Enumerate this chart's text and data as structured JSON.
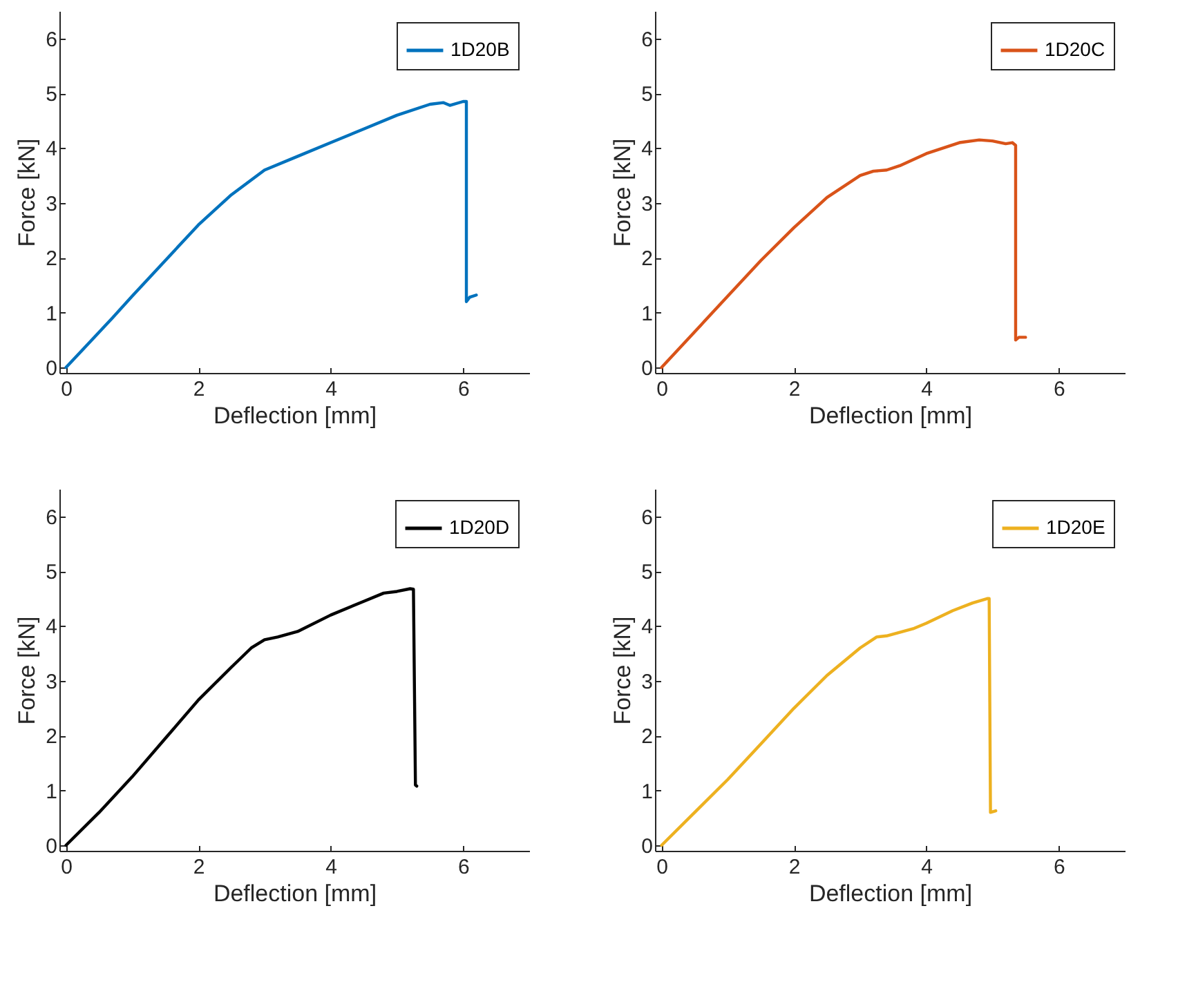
{
  "chart_data": [
    {
      "type": "line",
      "xlabel": "Deflection [mm]",
      "ylabel": "Force [kN]",
      "xlim": [
        -0.1,
        7
      ],
      "ylim": [
        -0.1,
        6.5
      ],
      "xticks": [
        0,
        2,
        4,
        6
      ],
      "yticks": [
        0,
        1,
        2,
        3,
        4,
        5,
        6
      ],
      "legend": "top right",
      "grid": false,
      "series": [
        {
          "name": "1D20B",
          "color": "#0072bd",
          "x": [
            0,
            0.7,
            1,
            1.5,
            2,
            2.5,
            3,
            3.5,
            4,
            4.5,
            5,
            5.5,
            5.7,
            5.8,
            6.0,
            6.05,
            6.05,
            6.1,
            6.2
          ],
          "values": [
            0,
            0.9,
            1.3,
            1.95,
            2.6,
            3.15,
            3.6,
            3.85,
            4.1,
            4.35,
            4.6,
            4.8,
            4.83,
            4.78,
            4.85,
            4.85,
            1.2,
            1.28,
            1.32
          ]
        }
      ]
    },
    {
      "type": "line",
      "xlabel": "Deflection [mm]",
      "ylabel": "Force [kN]",
      "xlim": [
        -0.1,
        7
      ],
      "ylim": [
        -0.1,
        6.5
      ],
      "xticks": [
        0,
        2,
        4,
        6
      ],
      "yticks": [
        0,
        1,
        2,
        3,
        4,
        5,
        6
      ],
      "legend": "top right",
      "grid": false,
      "series": [
        {
          "name": "1D20C",
          "color": "#d95319",
          "x": [
            0,
            0.5,
            1,
            1.5,
            2,
            2.5,
            3,
            3.2,
            3.4,
            3.6,
            4,
            4.5,
            4.8,
            5,
            5.2,
            5.3,
            5.35,
            5.35,
            5.4,
            5.5
          ],
          "values": [
            0,
            0.65,
            1.3,
            1.95,
            2.55,
            3.1,
            3.5,
            3.58,
            3.6,
            3.68,
            3.9,
            4.1,
            4.15,
            4.13,
            4.08,
            4.1,
            4.05,
            0.5,
            0.55,
            0.55
          ]
        }
      ]
    },
    {
      "type": "line",
      "xlabel": "Deflection [mm]",
      "ylabel": "Force [kN]",
      "xlim": [
        -0.1,
        7
      ],
      "ylim": [
        -0.1,
        6.5
      ],
      "xticks": [
        0,
        2,
        4,
        6
      ],
      "yticks": [
        0,
        1,
        2,
        3,
        4,
        5,
        6
      ],
      "legend": "top right",
      "grid": false,
      "series": [
        {
          "name": "1D20D",
          "color": "#000000",
          "x": [
            0,
            0.5,
            1,
            1.5,
            2,
            2.5,
            2.8,
            3,
            3.2,
            3.5,
            4,
            4.5,
            4.8,
            5,
            5.2,
            5.25,
            5.28,
            5.3
          ],
          "values": [
            0,
            0.6,
            1.25,
            1.95,
            2.65,
            3.25,
            3.6,
            3.75,
            3.8,
            3.9,
            4.2,
            4.45,
            4.6,
            4.63,
            4.68,
            4.67,
            1.1,
            1.08
          ]
        }
      ]
    },
    {
      "type": "line",
      "xlabel": "Deflection [mm]",
      "ylabel": "Force [kN]",
      "xlim": [
        -0.1,
        7
      ],
      "ylim": [
        -0.1,
        6.5
      ],
      "xticks": [
        0,
        2,
        4,
        6
      ],
      "yticks": [
        0,
        1,
        2,
        3,
        4,
        5,
        6
      ],
      "legend": "top right",
      "grid": false,
      "series": [
        {
          "name": "1D20E",
          "color": "#edb120",
          "x": [
            0,
            0.5,
            1,
            1.5,
            2,
            2.5,
            3,
            3.25,
            3.4,
            3.8,
            4,
            4.4,
            4.7,
            4.92,
            4.95,
            4.97,
            5.05
          ],
          "values": [
            0,
            0.6,
            1.2,
            1.85,
            2.5,
            3.1,
            3.6,
            3.8,
            3.82,
            3.95,
            4.05,
            4.28,
            4.42,
            4.5,
            4.5,
            0.6,
            0.63
          ]
        }
      ]
    }
  ]
}
